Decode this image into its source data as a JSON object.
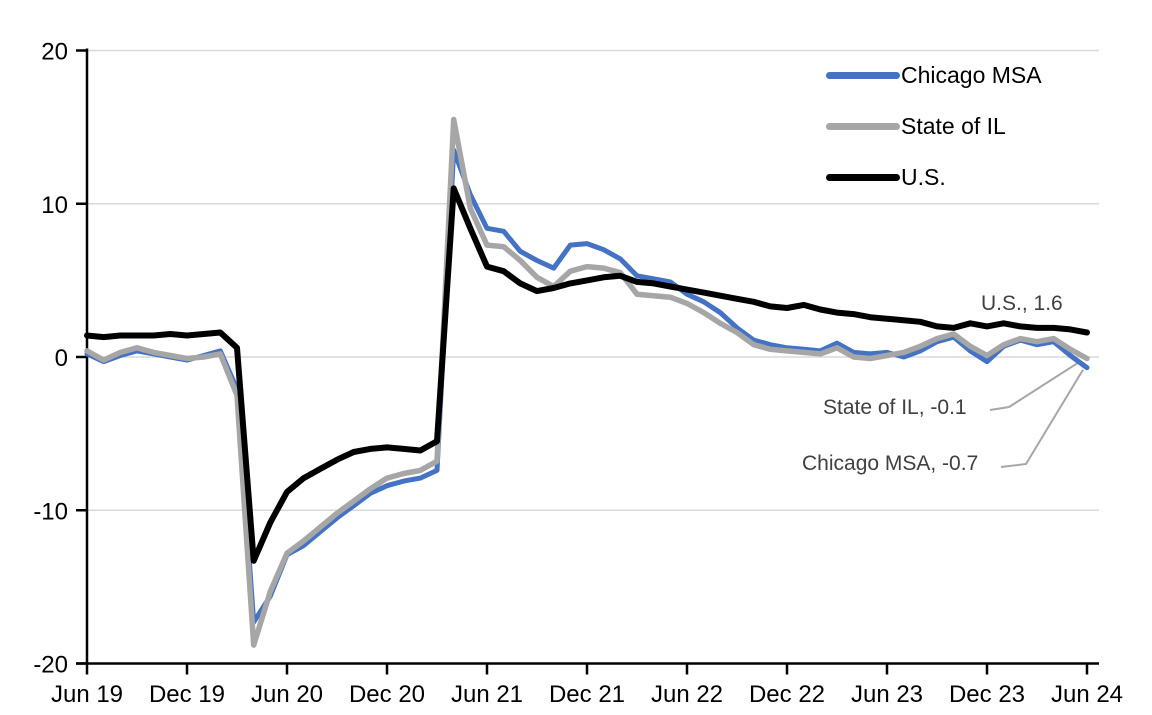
{
  "chart_data": {
    "type": "line",
    "title": "",
    "subtitle": "",
    "xlabel": "",
    "ylabel": "",
    "ylim": [
      -20,
      20
    ],
    "y_ticks": [
      20,
      10,
      0,
      -10,
      -20
    ],
    "x_tick_labels": [
      "Jun 19",
      "Dec 19",
      "Jun 20",
      "Dec 20",
      "Jun 21",
      "Dec 21",
      "Jun 22",
      "Dec 22",
      "Jun 23",
      "Dec 23",
      "Jun 24"
    ],
    "grid": "horizontal",
    "gridline_color": "#D9D9D9",
    "axis_color": "#000000",
    "legend_position": "top-right",
    "annotation_text_color": "#404040",
    "leader_line_color": "#A6A6A6",
    "months": [
      "Jun 19",
      "Jul 19",
      "Aug 19",
      "Sep 19",
      "Oct 19",
      "Nov 19",
      "Dec 19",
      "Jan 20",
      "Feb 20",
      "Mar 20",
      "Apr 20",
      "May 20",
      "Jun 20",
      "Jul 20",
      "Aug 20",
      "Sep 20",
      "Oct 20",
      "Nov 20",
      "Dec 20",
      "Jan 21",
      "Feb 21",
      "Mar 21",
      "Apr 21",
      "May 21",
      "Jun 21",
      "Jul 21",
      "Aug 21",
      "Sep 21",
      "Oct 21",
      "Nov 21",
      "Dec 21",
      "Jan 22",
      "Feb 22",
      "Mar 22",
      "Apr 22",
      "May 22",
      "Jun 22",
      "Jul 22",
      "Aug 22",
      "Sep 22",
      "Oct 22",
      "Nov 22",
      "Dec 22",
      "Jan 23",
      "Feb 23",
      "Mar 23",
      "Apr 23",
      "May 23",
      "Jun 23",
      "Jul 23",
      "Aug 23",
      "Sep 23",
      "Oct 23",
      "Nov 23",
      "Dec 23",
      "Jan 24",
      "Feb 24",
      "Mar 24",
      "Apr 24",
      "May 24",
      "Jun 24"
    ],
    "series": [
      {
        "name": "Chicago MSA",
        "color": "#4472C4",
        "last_value": -0.7,
        "values": [
          0.2,
          -0.3,
          0.1,
          0.4,
          0.2,
          0.0,
          -0.2,
          0.1,
          0.4,
          -2.1,
          -17.3,
          -15.6,
          -12.9,
          -12.3,
          -11.4,
          -10.5,
          -9.7,
          -8.9,
          -8.4,
          -8.1,
          -7.9,
          -7.4,
          13.5,
          10.6,
          8.4,
          8.2,
          6.9,
          6.3,
          5.8,
          7.3,
          7.4,
          7.0,
          6.4,
          5.3,
          5.1,
          4.9,
          4.1,
          3.6,
          2.9,
          1.9,
          1.1,
          0.8,
          0.6,
          0.5,
          0.4,
          0.9,
          0.3,
          0.2,
          0.3,
          0.0,
          0.4,
          1.0,
          1.3,
          0.4,
          -0.3,
          0.7,
          1.1,
          0.8,
          1.0,
          0.1,
          -0.7
        ]
      },
      {
        "name": "State of IL",
        "color": "#A6A6A6",
        "last_value": -0.1,
        "values": [
          0.4,
          -0.2,
          0.3,
          0.6,
          0.3,
          0.1,
          -0.1,
          0.0,
          0.2,
          -2.5,
          -18.8,
          -15.3,
          -12.8,
          -12.0,
          -11.1,
          -10.2,
          -9.4,
          -8.6,
          -7.9,
          -7.6,
          -7.4,
          -6.8,
          15.5,
          9.7,
          7.3,
          7.2,
          6.3,
          5.2,
          4.6,
          5.6,
          5.9,
          5.8,
          5.5,
          4.1,
          4.0,
          3.9,
          3.5,
          2.9,
          2.2,
          1.6,
          0.8,
          0.5,
          0.4,
          0.3,
          0.2,
          0.6,
          0.0,
          -0.1,
          0.1,
          0.3,
          0.7,
          1.2,
          1.5,
          0.7,
          0.1,
          0.8,
          1.2,
          1.0,
          1.2,
          0.5,
          -0.1
        ]
      },
      {
        "name": "U.S.",
        "color": "#000000",
        "last_value": 1.6,
        "values": [
          1.4,
          1.3,
          1.4,
          1.4,
          1.4,
          1.5,
          1.4,
          1.5,
          1.6,
          0.6,
          -13.3,
          -10.8,
          -8.8,
          -7.9,
          -7.3,
          -6.7,
          -6.2,
          -6.0,
          -5.9,
          -6.0,
          -6.1,
          -5.5,
          11.0,
          8.4,
          5.9,
          5.6,
          4.8,
          4.3,
          4.5,
          4.8,
          5.0,
          5.2,
          5.3,
          4.9,
          4.8,
          4.6,
          4.4,
          4.2,
          4.0,
          3.8,
          3.6,
          3.3,
          3.2,
          3.4,
          3.1,
          2.9,
          2.8,
          2.6,
          2.5,
          2.4,
          2.3,
          2.0,
          1.9,
          2.2,
          2.0,
          2.2,
          2.0,
          1.9,
          1.9,
          1.8,
          1.6
        ]
      }
    ],
    "annotations": [
      {
        "text": "U.S., 1.6"
      },
      {
        "text": "State of IL, -0.1"
      },
      {
        "text": "Chicago MSA, -0.7"
      }
    ]
  }
}
